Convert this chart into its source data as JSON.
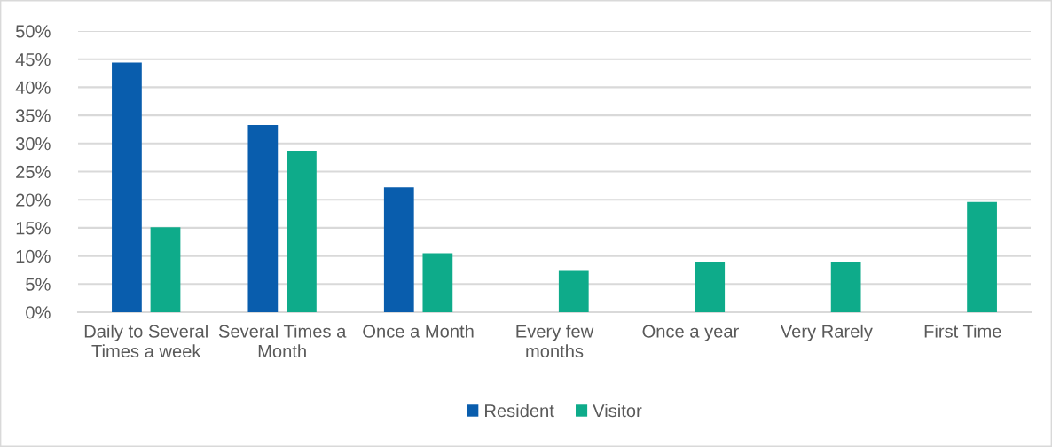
{
  "chart_data": {
    "type": "bar",
    "categories": [
      "Daily to Several\nTimes a week",
      "Several Times a\nMonth",
      "Once a Month",
      "Every few\nmonths",
      "Once a year",
      "Very Rarely",
      "First Time"
    ],
    "series": [
      {
        "name": "Resident",
        "color": "#095dad",
        "values": [
          44.4,
          33.3,
          22.2,
          null,
          null,
          null,
          null
        ]
      },
      {
        "name": "Visitor",
        "color": "#0eab8a",
        "values": [
          15.1,
          28.7,
          10.5,
          7.5,
          9.0,
          9.0,
          19.6
        ]
      }
    ],
    "ylim": [
      0,
      50
    ],
    "yticks": [
      {
        "value": 0,
        "label": "0%"
      },
      {
        "value": 5,
        "label": "5%"
      },
      {
        "value": 10,
        "label": "10%"
      },
      {
        "value": 15,
        "label": "15%"
      },
      {
        "value": 20,
        "label": "20%"
      },
      {
        "value": 25,
        "label": "25%"
      },
      {
        "value": 30,
        "label": "30%"
      },
      {
        "value": 35,
        "label": "35%"
      },
      {
        "value": 40,
        "label": "40%"
      },
      {
        "value": 45,
        "label": "45%"
      },
      {
        "value": 50,
        "label": "50%"
      }
    ],
    "grid": "y",
    "legend": "bottom"
  }
}
